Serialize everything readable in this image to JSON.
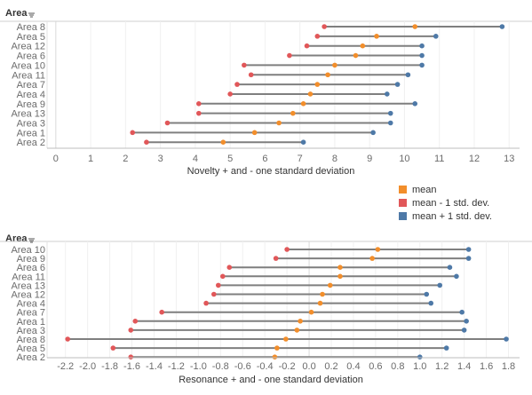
{
  "colors": {
    "mean": "#f28e2b",
    "minus": "#e15759",
    "plus": "#4e79a7",
    "line": "#7f7f7f"
  },
  "legend": {
    "items": [
      {
        "key": "mean",
        "label": "mean",
        "color": "#f28e2b"
      },
      {
        "key": "minus",
        "label": "mean - 1 std. dev.",
        "color": "#e15759"
      },
      {
        "key": "plus",
        "label": "mean + 1 std. dev.",
        "color": "#4e79a7"
      }
    ]
  },
  "chart_data": [
    {
      "type": "dumbbell",
      "header": "Area",
      "xlabel": "Novelty + and - one standard deviation",
      "xlim": [
        -0.2,
        13.3
      ],
      "xticks": [
        "0",
        "1",
        "2",
        "3",
        "4",
        "5",
        "6",
        "7",
        "8",
        "9",
        "10",
        "11",
        "12",
        "13"
      ],
      "tick_values": [
        0,
        1,
        2,
        3,
        4,
        5,
        6,
        7,
        8,
        9,
        10,
        11,
        12,
        13
      ],
      "rows": [
        {
          "category": "Area 8",
          "minus": 7.7,
          "mean": 10.3,
          "plus": 12.8
        },
        {
          "category": "Area 5",
          "minus": 7.5,
          "mean": 9.2,
          "plus": 10.9
        },
        {
          "category": "Area 12",
          "minus": 7.2,
          "mean": 8.8,
          "plus": 10.5
        },
        {
          "category": "Area 6",
          "minus": 6.7,
          "mean": 8.6,
          "plus": 10.5
        },
        {
          "category": "Area 10",
          "minus": 5.4,
          "mean": 8.0,
          "plus": 10.5
        },
        {
          "category": "Area 11",
          "minus": 5.6,
          "mean": 7.8,
          "plus": 10.1
        },
        {
          "category": "Area 7",
          "minus": 5.2,
          "mean": 7.5,
          "plus": 9.8
        },
        {
          "category": "Area 4",
          "minus": 5.0,
          "mean": 7.3,
          "plus": 9.5
        },
        {
          "category": "Area 9",
          "minus": 4.1,
          "mean": 7.1,
          "plus": 10.3
        },
        {
          "category": "Area 13",
          "minus": 4.1,
          "mean": 6.8,
          "plus": 9.6
        },
        {
          "category": "Area 3",
          "minus": 3.2,
          "mean": 6.4,
          "plus": 9.6
        },
        {
          "category": "Area 1",
          "minus": 2.2,
          "mean": 5.7,
          "plus": 9.1
        },
        {
          "category": "Area 2",
          "minus": 2.6,
          "mean": 4.8,
          "plus": 7.1
        }
      ]
    },
    {
      "type": "dumbbell",
      "header": "Area",
      "xlabel": "Resonance + and - one standard deviation",
      "xlim": [
        -2.35,
        1.9
      ],
      "xticks": [
        "-2.2",
        "-2.0",
        "-1.8",
        "-1.6",
        "-1.4",
        "-1.2",
        "-1.0",
        "-0.8",
        "-0.6",
        "-0.4",
        "-0.2",
        "0.0",
        "0.2",
        "0.4",
        "0.6",
        "0.8",
        "1.0",
        "1.2",
        "1.4",
        "1.6",
        "1.8"
      ],
      "tick_values": [
        -2.2,
        -2.0,
        -1.8,
        -1.6,
        -1.4,
        -1.2,
        -1.0,
        -0.8,
        -0.6,
        -0.4,
        -0.2,
        0.0,
        0.2,
        0.4,
        0.6,
        0.8,
        1.0,
        1.2,
        1.4,
        1.6,
        1.8
      ],
      "rows": [
        {
          "category": "Area 10",
          "minus": -0.2,
          "mean": 0.62,
          "plus": 1.44
        },
        {
          "category": "Area 9",
          "minus": -0.3,
          "mean": 0.57,
          "plus": 1.44
        },
        {
          "category": "Area 6",
          "minus": -0.72,
          "mean": 0.28,
          "plus": 1.27
        },
        {
          "category": "Area 11",
          "minus": -0.78,
          "mean": 0.28,
          "plus": 1.33
        },
        {
          "category": "Area 13",
          "minus": -0.82,
          "mean": 0.19,
          "plus": 1.18
        },
        {
          "category": "Area 12",
          "minus": -0.86,
          "mean": 0.12,
          "plus": 1.06
        },
        {
          "category": "Area 4",
          "minus": -0.93,
          "mean": 0.1,
          "plus": 1.1
        },
        {
          "category": "Area 7",
          "minus": -1.33,
          "mean": 0.02,
          "plus": 1.38
        },
        {
          "category": "Area 1",
          "minus": -1.57,
          "mean": -0.08,
          "plus": 1.42
        },
        {
          "category": "Area 3",
          "minus": -1.61,
          "mean": -0.11,
          "plus": 1.4
        },
        {
          "category": "Area 8",
          "minus": -2.18,
          "mean": -0.21,
          "plus": 1.78
        },
        {
          "category": "Area 5",
          "minus": -1.77,
          "mean": -0.29,
          "plus": 1.24
        },
        {
          "category": "Area 2",
          "minus": -1.61,
          "mean": -0.31,
          "plus": 1.0
        }
      ]
    }
  ]
}
